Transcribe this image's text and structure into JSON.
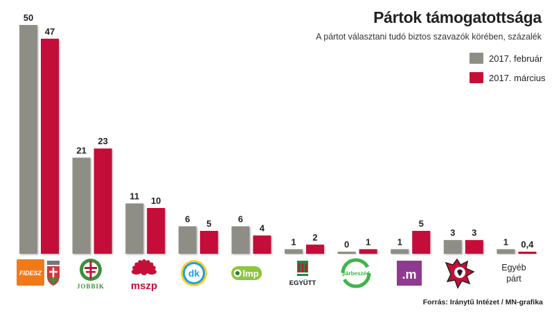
{
  "header": {
    "title": "Pártok támogatottsága",
    "subtitle": "A pártot választani tudó biztos szavazók körében, százalék"
  },
  "legend": [
    {
      "label": "2017. február",
      "color": "#8e8e86"
    },
    {
      "label": "2017. március",
      "color": "#c41038"
    }
  ],
  "source": "Forrás: Iránytű Intézet / MN-grafika",
  "colors": {
    "series1": "#8e8e86",
    "series2": "#c41038"
  },
  "logos": [
    {
      "icon": "fidesz-kdnp-logo",
      "text": "FIDESZ"
    },
    {
      "icon": "jobbik-logo",
      "text": "JOBBIK"
    },
    {
      "icon": "mszp-logo",
      "text": "mszp"
    },
    {
      "icon": "dk-logo",
      "text": "dk"
    },
    {
      "icon": "lmp-logo",
      "text": "lmp"
    },
    {
      "icon": "egyutt-logo",
      "text": "EGYÜTT"
    },
    {
      "icon": "parbeszed-logo",
      "text": "párbeszéd"
    },
    {
      "icon": "momentum-logo",
      "text": ".m"
    },
    {
      "icon": "mkkp-logo",
      "text": ""
    }
  ],
  "other_label": {
    "line1": "Egyéb",
    "line2": "párt"
  },
  "chart_data": {
    "type": "bar",
    "title": "Pártok támogatottsága",
    "subtitle": "A pártot választani tudó biztos szavazók körében, százalék",
    "categories": [
      "FIDESZ-KDNP",
      "JOBBIK",
      "MSZP",
      "DK",
      "LMP",
      "EGYÜTT",
      "PÁRBESZÉD",
      "MOMENTUM",
      "MKKP",
      "Egyéb párt"
    ],
    "series": [
      {
        "name": "2017. február",
        "values": [
          50,
          21,
          11,
          6,
          6,
          1,
          0,
          1,
          3,
          1
        ]
      },
      {
        "name": "2017. március",
        "values": [
          47,
          23,
          10,
          5,
          4,
          2,
          1,
          5,
          3,
          0.4
        ]
      }
    ],
    "value_labels": [
      [
        "50",
        "21",
        "11",
        "6",
        "6",
        "1",
        "0",
        "1",
        "3",
        "1"
      ],
      [
        "47",
        "23",
        "10",
        "5",
        "4",
        "2",
        "1",
        "5",
        "3",
        "0,4"
      ]
    ],
    "ylim": [
      0,
      50
    ],
    "grid": false,
    "legend_position": "top-right"
  }
}
